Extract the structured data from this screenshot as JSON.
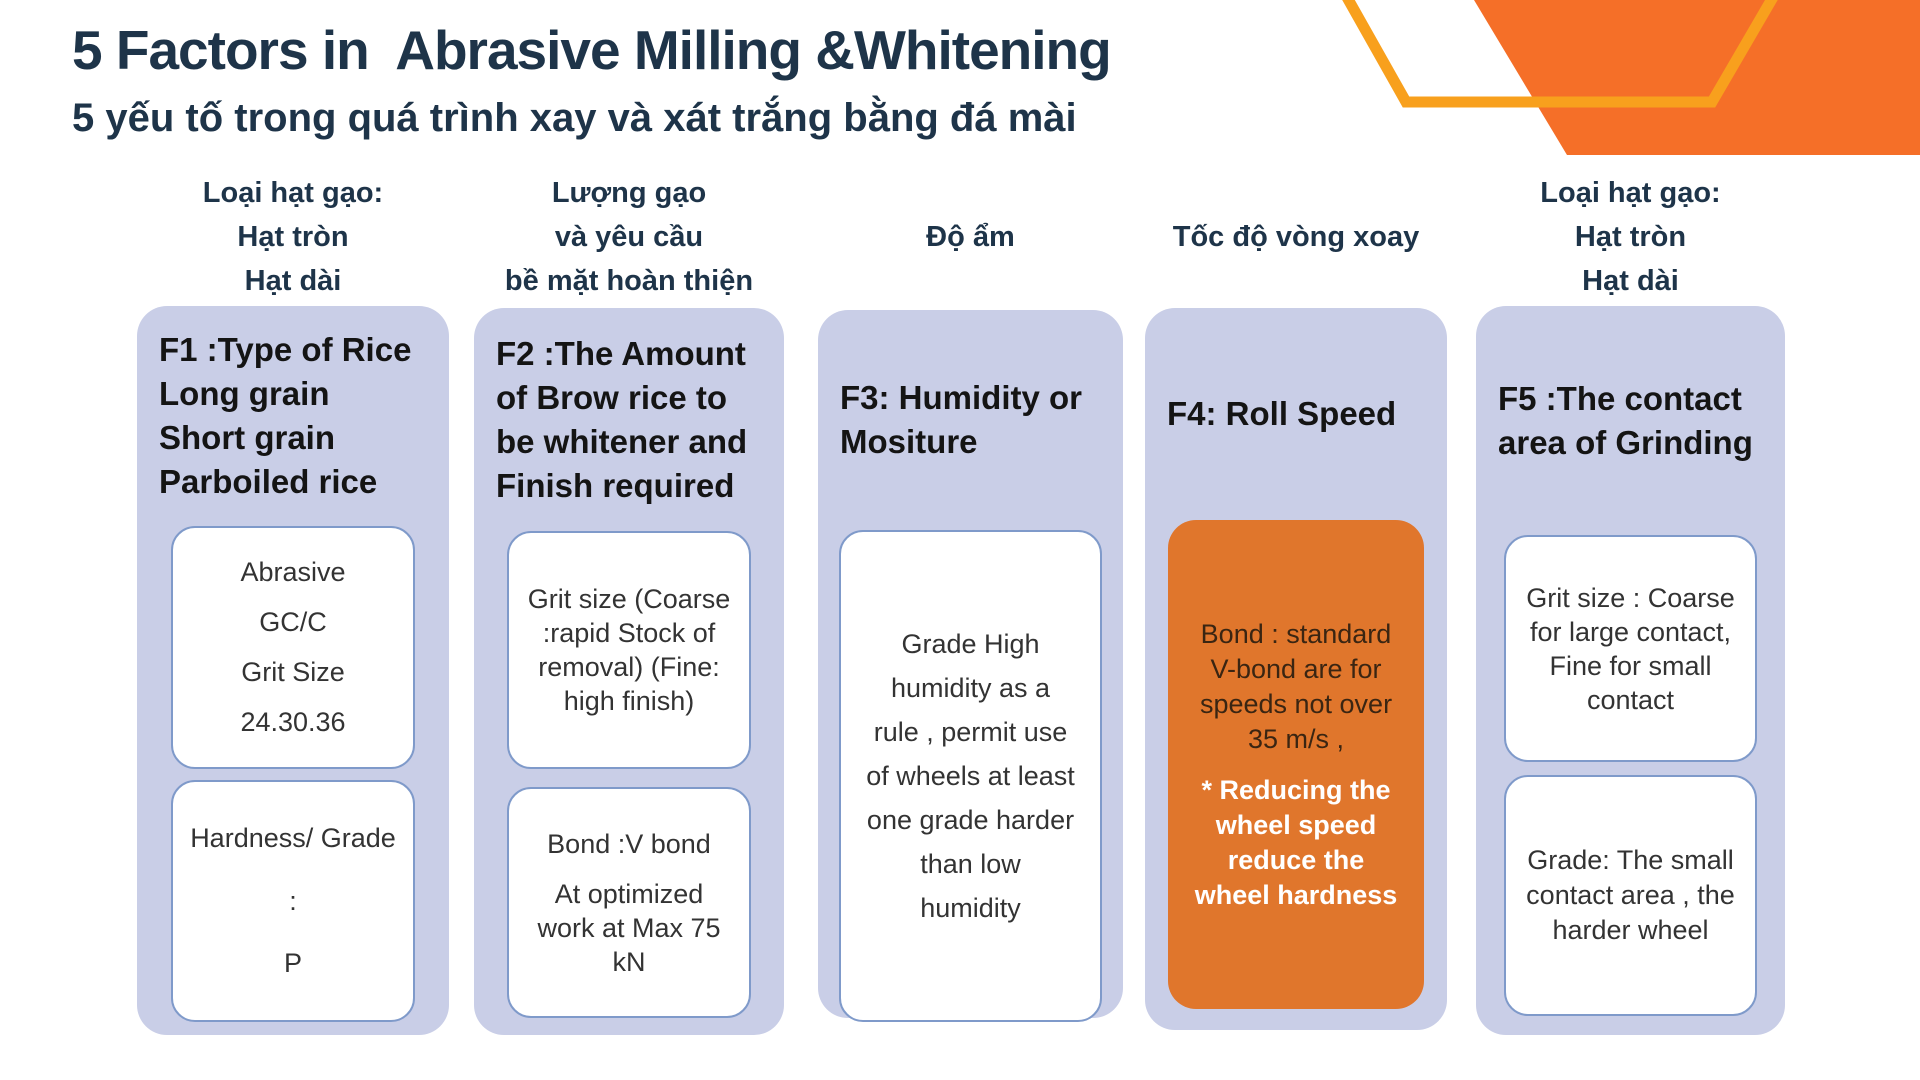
{
  "title": "5 Factors in  Abrasive Milling &Whitening",
  "subtitle": "5 yếu tố trong quá trình xay và xát trắng bằng đá mài",
  "colors": {
    "navy": "#1e3449",
    "panel": "#c9cee7",
    "cardBorder": "#7f9aca",
    "orange": "#e0762c",
    "decor_fill": "#f56f28",
    "decor_stroke": "#f8a01d"
  },
  "columns": [
    {
      "id": "f1",
      "top_label_lines": [
        "Loại hạt gạo:",
        "Hạt tròn",
        "Hạt dài"
      ],
      "heading_lines": [
        "F1 :Type of Rice",
        "Long grain",
        "Short grain",
        "Parboiled rice"
      ],
      "cards": [
        {
          "variant": "white",
          "groups": [
            {
              "tone": "normal",
              "lines": [
                "Abrasive",
                "GC/C",
                "Grit Size",
                "24.30.36"
              ]
            }
          ]
        },
        {
          "variant": "white",
          "groups": [
            {
              "tone": "normal",
              "lines": [
                "Hardness/ Grade",
                ":",
                "P"
              ]
            }
          ]
        }
      ]
    },
    {
      "id": "f2",
      "top_label_lines": [
        "Lượng gạo",
        "và  yêu cầu",
        "bề mặt hoàn thiện"
      ],
      "heading_lines": [
        "F2 :The Amount",
        "of Brow rice to",
        "be whitener and",
        "Finish required"
      ],
      "cards": [
        {
          "variant": "white",
          "groups": [
            {
              "tone": "normal",
              "lines": [
                "Grit size (Coarse",
                ":rapid Stock of",
                "removal) (Fine:",
                "high finish)"
              ]
            }
          ]
        },
        {
          "variant": "white",
          "groups": [
            {
              "tone": "normal",
              "lines": [
                "Bond :V bond"
              ]
            },
            {
              "tone": "normal",
              "lines": [
                "At optimized",
                "work at Max 75",
                "kN"
              ]
            }
          ]
        }
      ]
    },
    {
      "id": "f3",
      "top_label_lines": [
        "Độ ẩm"
      ],
      "heading_lines": [
        "F3: Humidity or",
        "Mositure"
      ],
      "cards": [
        {
          "variant": "white",
          "groups": [
            {
              "tone": "normal",
              "lines": [
                "Grade High",
                "humidity as a",
                "rule , permit use",
                "of wheels at least",
                "one grade harder",
                "than low",
                "humidity"
              ]
            }
          ]
        }
      ]
    },
    {
      "id": "f4",
      "top_label_lines": [
        "Tốc độ vòng xoay"
      ],
      "heading_lines": [
        "F4: Roll Speed"
      ],
      "cards": [
        {
          "variant": "orange",
          "groups": [
            {
              "tone": "dark",
              "lines": [
                "Bond : standard",
                "V-bond are for",
                "speeds not over",
                "35 m/s ,"
              ]
            },
            {
              "tone": "white-bold",
              "lines": [
                "* Reducing the",
                "wheel speed",
                "reduce the",
                "wheel hardness"
              ]
            }
          ]
        }
      ]
    },
    {
      "id": "f5",
      "top_label_lines": [
        "Loại hạt gạo:",
        "Hạt tròn",
        "Hạt dài"
      ],
      "heading_lines": [
        "F5 :The contact",
        "area of Grinding"
      ],
      "cards": [
        {
          "variant": "white",
          "groups": [
            {
              "tone": "normal",
              "lines": [
                "Grit size : Coarse",
                "for large contact,",
                "Fine for small",
                "contact"
              ]
            }
          ]
        },
        {
          "variant": "white",
          "groups": [
            {
              "tone": "normal",
              "lines": [
                "Grade: The small",
                "contact area , the",
                "harder wheel"
              ]
            }
          ]
        }
      ]
    }
  ]
}
